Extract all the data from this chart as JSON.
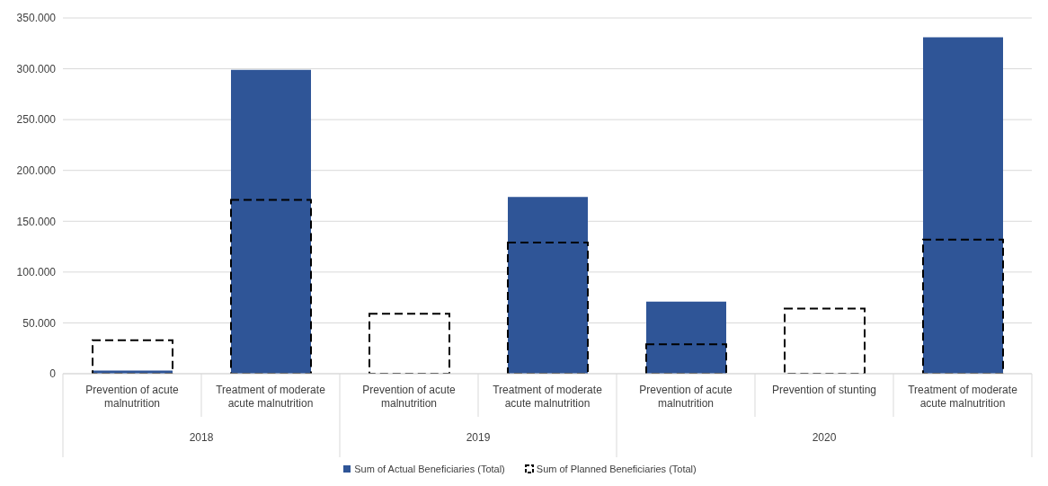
{
  "chart_data": {
    "type": "bar",
    "categories": [
      "Prevention of acute malnutrition",
      "Treatment of moderate acute malnutrition",
      "Prevention of acute malnutrition",
      "Treatment of moderate acute malnutrition",
      "Prevention of acute malnutrition",
      "Prevention of stunting",
      "Treatment of moderate acute malnutrition"
    ],
    "annotations": [
      "2018",
      "2019",
      "2020"
    ],
    "series": [
      {
        "name": "Sum of Actual Beneficiaries (Total)",
        "color": "#2f5597",
        "values": [
          3000,
          299000,
          0,
          174000,
          71000,
          0,
          331000
        ]
      },
      {
        "name": "Sum of Planned Beneficiaries (Total)",
        "color": "#000000",
        "line_style": "dashed",
        "values": [
          33000,
          171000,
          59000,
          129000,
          29000,
          64000,
          132000
        ]
      }
    ],
    "ylim": [
      0,
      350000
    ],
    "yticks": [
      0,
      {
        "value": 50000,
        "label": "50.000"
      },
      {
        "value": 100000,
        "label": "100.000"
      },
      {
        "value": 150000,
        "label": "150.000"
      },
      {
        "value": 200000,
        "label": "200.000"
      },
      {
        "value": 250000,
        "label": "250.000"
      },
      {
        "value": 300000,
        "label": "300.000"
      },
      {
        "value": 350000,
        "label": "350.000"
      }
    ],
    "grid": "y",
    "legend": "bottom"
  }
}
